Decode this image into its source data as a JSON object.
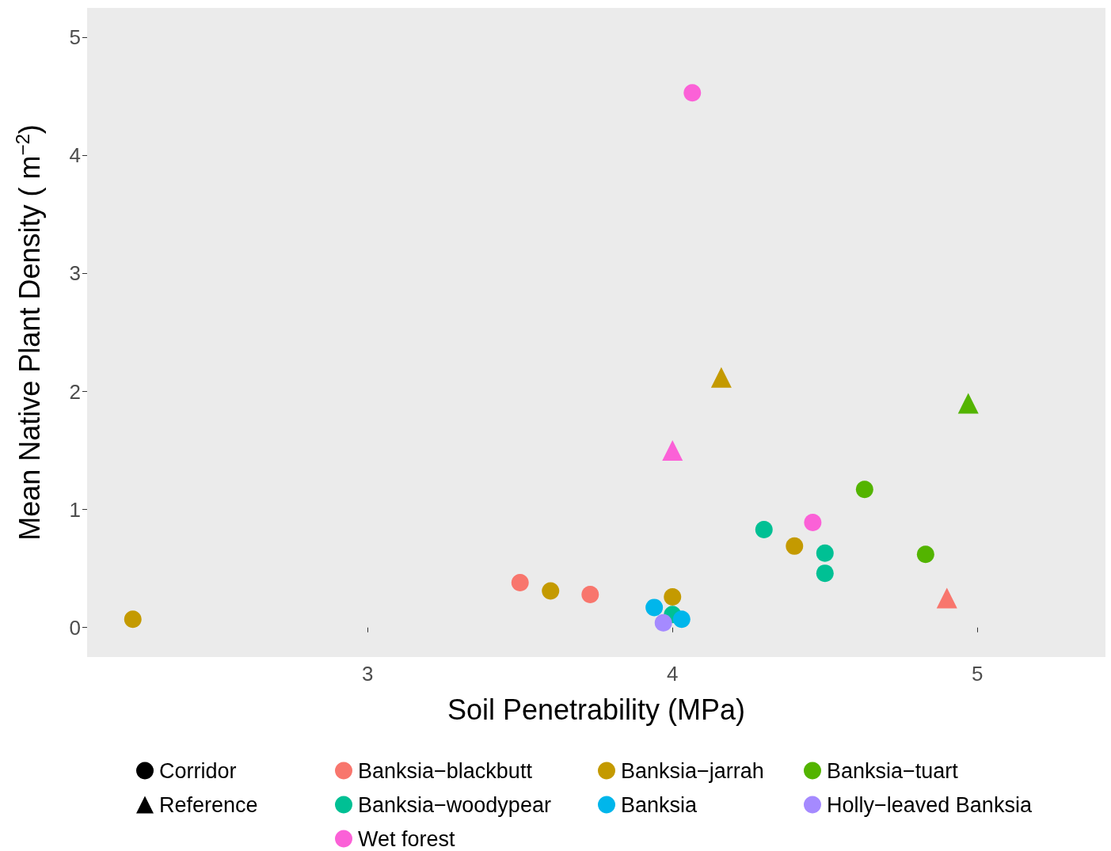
{
  "chart_data": {
    "type": "scatter",
    "xlabel": "Soil Penetrability (MPa)",
    "ylabel": "Mean Native Plant Density ( m$^{−2}$)",
    "xlim": [
      2.08,
      5.42
    ],
    "xticks": [
      3,
      4,
      5
    ],
    "ylim": [
      -0.25,
      5.25
    ],
    "yticks": [
      0,
      1,
      2,
      3,
      4,
      5
    ],
    "grid": false,
    "legend": "bottom",
    "series": [
      {
        "name": "Corridor",
        "color": "#000000",
        "marker": "circle"
      },
      {
        "name": "Reference",
        "color": "#000000",
        "marker": "triangle"
      },
      {
        "name": "Banksia−blackbutt",
        "color": "#f8766d",
        "marker": "circle",
        "x": [
          3.5,
          3.73
        ],
        "values": [
          0.38,
          0.28
        ]
      },
      {
        "name": "Banksia−jarrah",
        "color": "#c49a00",
        "marker": "circle",
        "x": [
          2.23,
          3.6,
          4.0,
          4.4
        ],
        "values": [
          0.07,
          0.31,
          0.26,
          0.69
        ]
      },
      {
        "name": "Banksia−tuart",
        "color": "#53b400",
        "marker": "circle",
        "x": [
          4.63,
          4.83
        ],
        "values": [
          1.17,
          0.62
        ]
      },
      {
        "name": "Banksia−woodypear",
        "color": "#00c094",
        "marker": "circle",
        "x": [
          4.3,
          4.5,
          4.5,
          4.0
        ],
        "values": [
          0.83,
          0.63,
          0.46,
          0.11
        ]
      },
      {
        "name": "Banksia",
        "color": "#00b6eb",
        "marker": "circle",
        "x": [
          3.94,
          4.03
        ],
        "values": [
          0.17,
          0.07
        ]
      },
      {
        "name": "Holly−leaved Banksia",
        "color": "#a58aff",
        "marker": "circle",
        "x": [
          3.97
        ],
        "values": [
          0.04
        ]
      },
      {
        "name": "Wet forest",
        "color": "#fb61d7",
        "marker": "circle",
        "x": [
          4.065,
          4.46
        ],
        "values": [
          4.53,
          0.89
        ]
      },
      {
        "color": "#f8766d",
        "marker": "triangle",
        "x": [
          4.9
        ],
        "values": [
          0.25
        ]
      },
      {
        "color": "#c49a00",
        "marker": "triangle",
        "x": [
          4.16
        ],
        "values": [
          2.12
        ]
      },
      {
        "color": "#53b400",
        "marker": "triangle",
        "x": [
          4.97
        ],
        "values": [
          1.9
        ]
      },
      {
        "color": "#fb61d7",
        "marker": "triangle",
        "x": [
          4.0
        ],
        "values": [
          1.5
        ]
      }
    ]
  }
}
